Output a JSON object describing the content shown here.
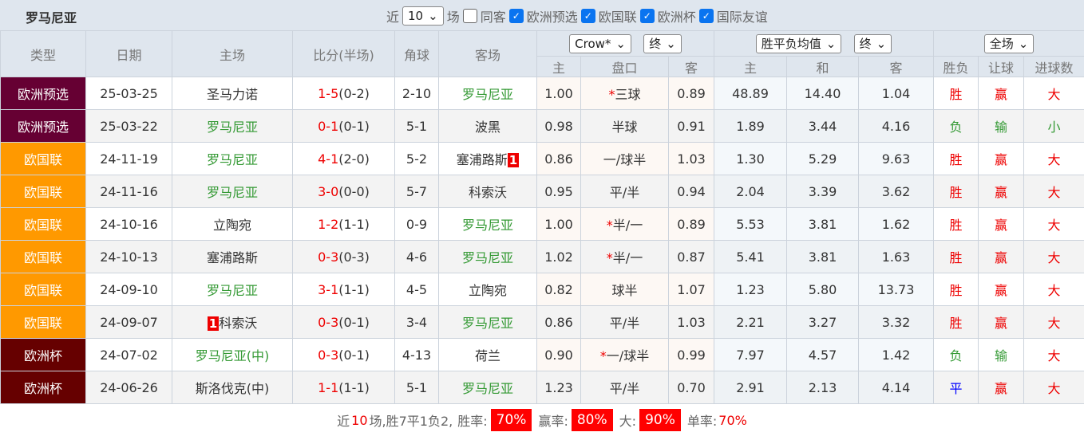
{
  "title": "罗马尼亚",
  "filters": {
    "near": "近",
    "count": "10",
    "games": "场",
    "same_away": "同客",
    "options": [
      "欧洲预选",
      "欧国联",
      "欧洲杯",
      "国际友谊"
    ]
  },
  "colors": {
    "欧洲预选": "#660033",
    "欧国联": "#ff9900",
    "欧洲杯": "#660000"
  },
  "header": {
    "type": "类型",
    "date": "日期",
    "home": "主场",
    "score": "比分(半场)",
    "corner": "角球",
    "away": "客场",
    "company_select": "Crow*",
    "final1": "终",
    "avg_select": "胜平负均值",
    "final2": "终",
    "period_select": "全场",
    "ah_home": "主",
    "ah_line": "盘口",
    "ah_away": "客",
    "x_home": "主",
    "x_draw": "和",
    "x_away": "客",
    "wl": "胜负",
    "hc": "让球",
    "ou": "进球数"
  },
  "rows": [
    {
      "type": "欧洲预选",
      "date": "25-03-25",
      "home": "圣马力诺",
      "home_green": false,
      "home_rc": "",
      "ft": "1-5",
      "ht": "(0-2)",
      "corner": "2-10",
      "away": "罗马尼亚",
      "away_green": true,
      "away_rc": "",
      "oh": "1.00",
      "star": "*",
      "line": "三球",
      "oa": "0.89",
      "xh": "48.89",
      "xd": "14.40",
      "xa": "1.04",
      "wl": "胜",
      "hc": "赢",
      "ou": "大"
    },
    {
      "type": "欧洲预选",
      "date": "25-03-22",
      "home": "罗马尼亚",
      "home_green": true,
      "home_rc": "",
      "ft": "0-1",
      "ht": "(0-1)",
      "corner": "5-1",
      "away": "波黑",
      "away_green": false,
      "away_rc": "",
      "oh": "0.98",
      "star": "",
      "line": "半球",
      "oa": "0.91",
      "xh": "1.89",
      "xd": "3.44",
      "xa": "4.16",
      "wl": "负",
      "hc": "输",
      "ou": "小"
    },
    {
      "type": "欧国联",
      "date": "24-11-19",
      "home": "罗马尼亚",
      "home_green": true,
      "home_rc": "",
      "ft": "4-1",
      "ht": "(2-0)",
      "corner": "5-2",
      "away": "塞浦路斯",
      "away_green": false,
      "away_rc": "1",
      "oh": "0.86",
      "star": "",
      "line": "一/球半",
      "oa": "1.03",
      "xh": "1.30",
      "xd": "5.29",
      "xa": "9.63",
      "wl": "胜",
      "hc": "赢",
      "ou": "大"
    },
    {
      "type": "欧国联",
      "date": "24-11-16",
      "home": "罗马尼亚",
      "home_green": true,
      "home_rc": "",
      "ft": "3-0",
      "ht": "(0-0)",
      "corner": "5-7",
      "away": "科索沃",
      "away_green": false,
      "away_rc": "",
      "oh": "0.95",
      "star": "",
      "line": "平/半",
      "oa": "0.94",
      "xh": "2.04",
      "xd": "3.39",
      "xa": "3.62",
      "wl": "胜",
      "hc": "赢",
      "ou": "大"
    },
    {
      "type": "欧国联",
      "date": "24-10-16",
      "home": "立陶宛",
      "home_green": false,
      "home_rc": "",
      "ft": "1-2",
      "ht": "(1-1)",
      "corner": "0-9",
      "away": "罗马尼亚",
      "away_green": true,
      "away_rc": "",
      "oh": "1.00",
      "star": "*",
      "line": "半/一",
      "oa": "0.89",
      "xh": "5.53",
      "xd": "3.81",
      "xa": "1.62",
      "wl": "胜",
      "hc": "赢",
      "ou": "大"
    },
    {
      "type": "欧国联",
      "date": "24-10-13",
      "home": "塞浦路斯",
      "home_green": false,
      "home_rc": "",
      "ft": "0-3",
      "ht": "(0-3)",
      "corner": "4-6",
      "away": "罗马尼亚",
      "away_green": true,
      "away_rc": "",
      "oh": "1.02",
      "star": "*",
      "line": "半/一",
      "oa": "0.87",
      "xh": "5.41",
      "xd": "3.81",
      "xa": "1.63",
      "wl": "胜",
      "hc": "赢",
      "ou": "大"
    },
    {
      "type": "欧国联",
      "date": "24-09-10",
      "home": "罗马尼亚",
      "home_green": true,
      "home_rc": "",
      "ft": "3-1",
      "ht": "(1-1)",
      "corner": "4-5",
      "away": "立陶宛",
      "away_green": false,
      "away_rc": "",
      "oh": "0.82",
      "star": "",
      "line": "球半",
      "oa": "1.07",
      "xh": "1.23",
      "xd": "5.80",
      "xa": "13.73",
      "wl": "胜",
      "hc": "赢",
      "ou": "大"
    },
    {
      "type": "欧国联",
      "date": "24-09-07",
      "home": "科索沃",
      "home_green": false,
      "home_rc": "1",
      "ft": "0-3",
      "ht": "(0-1)",
      "corner": "3-4",
      "away": "罗马尼亚",
      "away_green": true,
      "away_rc": "",
      "oh": "0.86",
      "star": "",
      "line": "平/半",
      "oa": "1.03",
      "xh": "2.21",
      "xd": "3.27",
      "xa": "3.32",
      "wl": "胜",
      "hc": "赢",
      "ou": "大"
    },
    {
      "type": "欧洲杯",
      "date": "24-07-02",
      "home": "罗马尼亚(中)",
      "home_green": true,
      "home_rc": "",
      "ft": "0-3",
      "ht": "(0-1)",
      "corner": "4-13",
      "away": "荷兰",
      "away_green": false,
      "away_rc": "",
      "oh": "0.90",
      "star": "*",
      "line": "一/球半",
      "oa": "0.99",
      "xh": "7.97",
      "xd": "4.57",
      "xa": "1.42",
      "wl": "负",
      "hc": "输",
      "ou": "大"
    },
    {
      "type": "欧洲杯",
      "date": "24-06-26",
      "home": "斯洛伐克(中)",
      "home_green": false,
      "home_rc": "",
      "ft": "1-1",
      "ht": "(1-1)",
      "corner": "5-1",
      "away": "罗马尼亚",
      "away_green": true,
      "away_rc": "",
      "oh": "1.23",
      "star": "",
      "line": "平/半",
      "oa": "0.70",
      "xh": "2.91",
      "xd": "2.13",
      "xa": "4.14",
      "wl": "平",
      "hc": "赢",
      "ou": "大"
    }
  ],
  "footer": {
    "near": "近",
    "n": "10",
    "summary": "场,胜7平1负2,",
    "win_label": "胜率:",
    "win": "70%",
    "hc_label": "赢率:",
    "hc": "80%",
    "big_label": "大:",
    "big": "90%",
    "odd_label": "单率:",
    "odd": "70%"
  }
}
